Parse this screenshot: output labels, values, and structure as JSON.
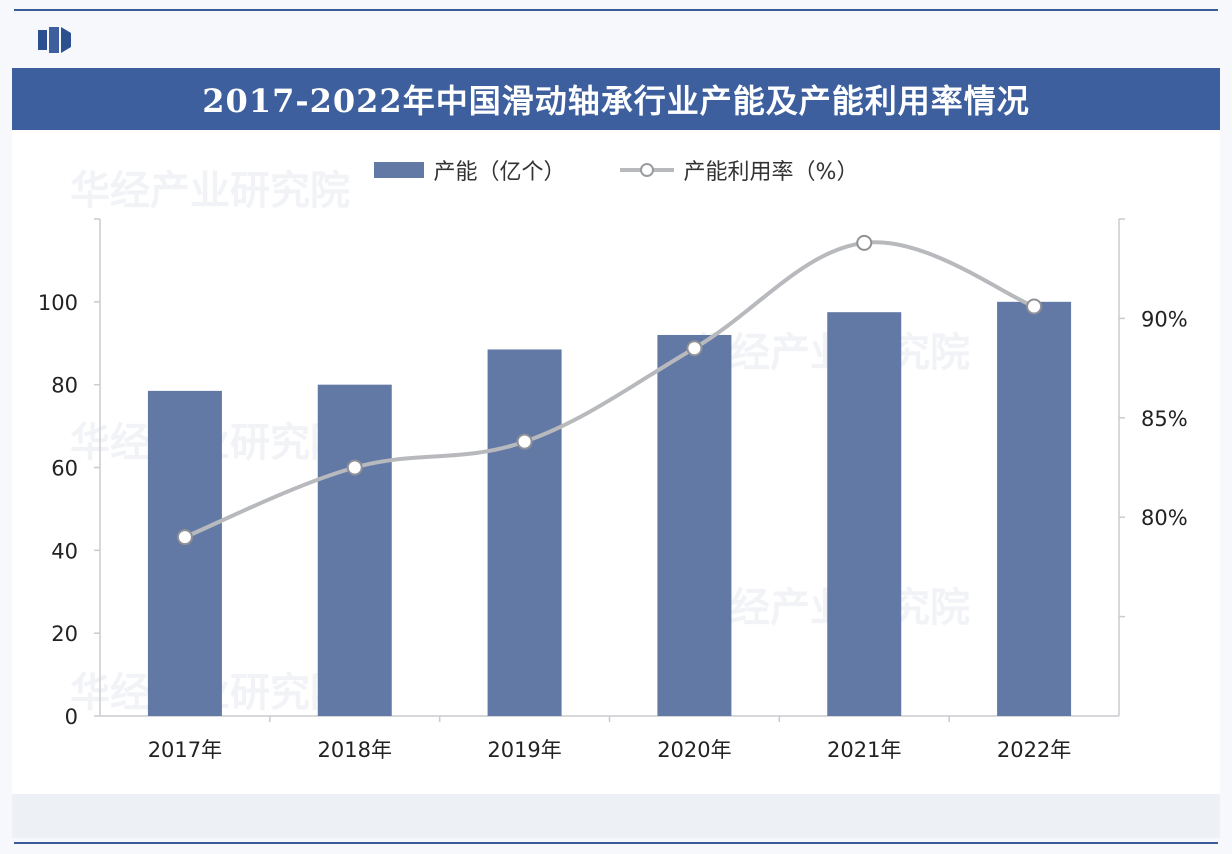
{
  "title": "2017-2022年中国滑动轴承行业产能及产能利用率情况",
  "legend": {
    "bar_label": "产能（亿个）",
    "line_label": "产能利用率（%）"
  },
  "watermark": "华经产业研究院",
  "colors": {
    "title_bg": "#3d5f9e",
    "bar": "#6279a5",
    "line": "#b7b9bd",
    "marker_fill": "#ffffff"
  },
  "chart_data": {
    "type": "bar",
    "categories": [
      "2017年",
      "2018年",
      "2019年",
      "2020年",
      "2021年",
      "2022年"
    ],
    "series": [
      {
        "name": "产能（亿个）",
        "type": "bar",
        "axis": "left",
        "values": [
          78.5,
          80,
          88.5,
          92,
          97.5,
          100
        ]
      },
      {
        "name": "产能利用率（%）",
        "type": "line",
        "axis": "right",
        "values": [
          79,
          82.5,
          83.8,
          88.5,
          93.8,
          90.6
        ]
      }
    ],
    "left_axis": {
      "ticks": [
        0,
        20,
        40,
        60,
        80,
        100
      ],
      "tick_labels": [
        "0",
        "20",
        "40",
        "60",
        "80",
        "100"
      ],
      "ylim": [
        0,
        120
      ]
    },
    "right_axis": {
      "ticks": [
        75,
        80,
        85,
        90,
        95
      ],
      "tick_labels": [
        "",
        "80%",
        "85%",
        "90%",
        ""
      ],
      "ylim": [
        70,
        95
      ]
    },
    "grid": false,
    "legend_position": "top"
  }
}
